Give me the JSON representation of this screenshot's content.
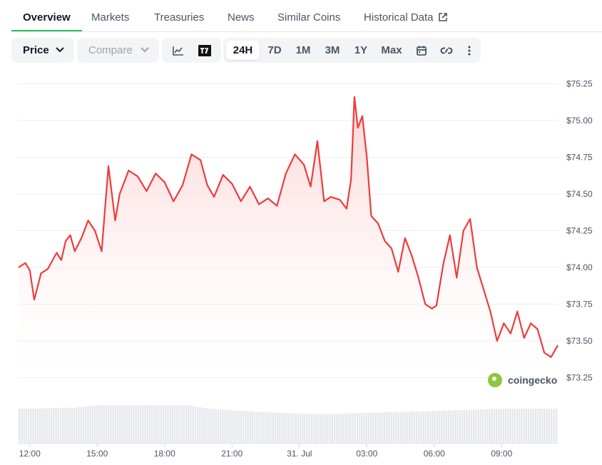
{
  "tabs": [
    {
      "label": "Overview",
      "active": true
    },
    {
      "label": "Markets",
      "active": false
    },
    {
      "label": "Treasuries",
      "active": false
    },
    {
      "label": "News",
      "active": false
    },
    {
      "label": "Similar Coins",
      "active": false
    },
    {
      "label": "Historical Data",
      "active": false,
      "icon": "external-link-icon"
    }
  ],
  "toolbar": {
    "price_label": "Price",
    "compare_label": "Compare",
    "ranges": [
      "24H",
      "7D",
      "1M",
      "3M",
      "1Y",
      "Max"
    ],
    "active_range": "24H",
    "icons": [
      "line-chart-icon",
      "tradingview-icon",
      "calendar-icon",
      "link-icon",
      "more-vertical-icon"
    ]
  },
  "chart_data": {
    "type": "area",
    "y_axis_side": "right",
    "y_ticks": [
      "$75.25",
      "$75.00",
      "$74.75",
      "$74.50",
      "$74.25",
      "$74.00",
      "$73.75",
      "$73.50",
      "$73.25"
    ],
    "ylim": [
      73.2,
      75.3
    ],
    "x_ticks": [
      "12:00",
      "15:00",
      "18:00",
      "21:00",
      "31. Jul",
      "03:00",
      "06:00",
      "09:00"
    ],
    "x_tick_hours": [
      12,
      15,
      18,
      21,
      24,
      27,
      30,
      33
    ],
    "xlim_hours": [
      11.5,
      35.5
    ],
    "price": {
      "x_hours": [
        11.5,
        11.8,
        12.0,
        12.2,
        12.3,
        12.5,
        12.8,
        13.2,
        13.4,
        13.6,
        13.8,
        14.0,
        14.3,
        14.6,
        14.9,
        15.2,
        15.5,
        15.8,
        16.0,
        16.4,
        16.8,
        17.2,
        17.6,
        18.0,
        18.4,
        18.8,
        19.2,
        19.6,
        19.9,
        20.2,
        20.6,
        21.0,
        21.4,
        21.8,
        22.2,
        22.6,
        23.0,
        23.4,
        23.8,
        24.2,
        24.5,
        24.8,
        25.1,
        25.4,
        25.8,
        26.1,
        26.3,
        26.45,
        26.6,
        26.8,
        27.0,
        27.2,
        27.5,
        27.8,
        28.1,
        28.4,
        28.7,
        29.0,
        29.3,
        29.6,
        29.9,
        30.1,
        30.4,
        30.7,
        31.0,
        31.3,
        31.6,
        31.9,
        32.2,
        32.5,
        32.8,
        33.1,
        33.4,
        33.7,
        34.0,
        34.3,
        34.6,
        34.9,
        35.2,
        35.5
      ],
      "values": [
        74.0,
        74.03,
        73.98,
        73.78,
        73.84,
        73.96,
        73.99,
        74.1,
        74.05,
        74.18,
        74.22,
        74.11,
        74.2,
        74.32,
        74.25,
        74.11,
        74.69,
        74.32,
        74.5,
        74.66,
        74.62,
        74.52,
        74.64,
        74.58,
        74.45,
        74.56,
        74.77,
        74.73,
        74.56,
        74.48,
        74.63,
        74.57,
        74.45,
        74.55,
        74.43,
        74.47,
        74.42,
        74.64,
        74.77,
        74.7,
        74.55,
        74.86,
        74.45,
        74.48,
        74.46,
        74.4,
        74.6,
        75.16,
        74.95,
        75.03,
        74.75,
        74.35,
        74.3,
        74.18,
        74.13,
        73.97,
        74.2,
        74.08,
        73.93,
        73.75,
        73.72,
        73.74,
        74.02,
        74.22,
        73.93,
        74.25,
        74.33,
        74.0,
        73.85,
        73.7,
        73.5,
        73.62,
        73.55,
        73.7,
        73.52,
        73.62,
        73.58,
        73.42,
        73.39,
        73.47
      ]
    },
    "volume": {
      "x_hours": [
        11.5,
        14.0,
        15.0,
        17.0,
        19.0,
        20.0,
        22.0,
        24.0,
        25.5,
        27.0,
        29.0,
        31.0,
        33.0,
        35.5
      ],
      "values": [
        0.7,
        0.72,
        0.77,
        0.77,
        0.77,
        0.7,
        0.64,
        0.6,
        0.59,
        0.62,
        0.64,
        0.67,
        0.7,
        0.7
      ]
    },
    "colors": {
      "line": "#ef3b3b",
      "fill_top": "#fcd2d2",
      "volume": "#e5e7eb",
      "grid": "#eeeeee"
    },
    "watermark": "coingecko"
  }
}
